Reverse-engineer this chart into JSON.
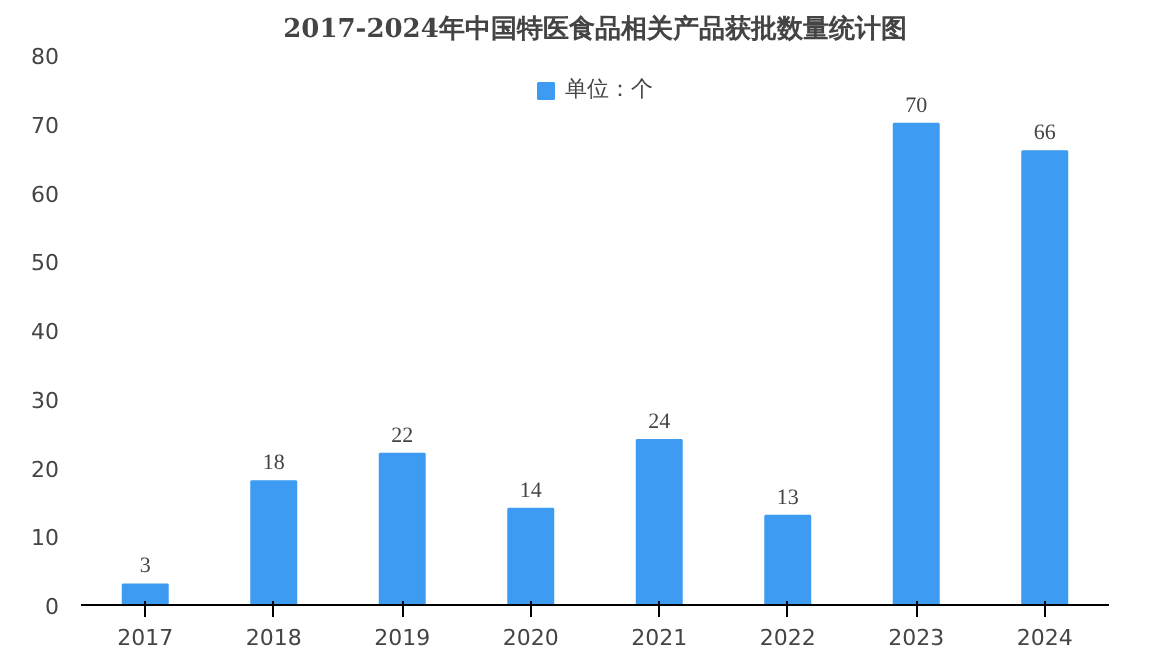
{
  "chart_data": {
    "type": "bar",
    "title": "2017-2024年中国特医食品相关产品获批数量统计图",
    "categories": [
      "2017",
      "2018",
      "2019",
      "2020",
      "2021",
      "2022",
      "2023",
      "2024"
    ],
    "series": [
      {
        "name": "单位：个",
        "color": "#3d9bf2",
        "values": [
          3,
          18,
          22,
          14,
          24,
          13,
          70,
          66
        ]
      }
    ],
    "ylim": [
      0,
      80
    ],
    "yticks": [
      0,
      10,
      20,
      30,
      40,
      50,
      60,
      70,
      80
    ],
    "grid": false,
    "legend": "top",
    "data_labels": true
  }
}
